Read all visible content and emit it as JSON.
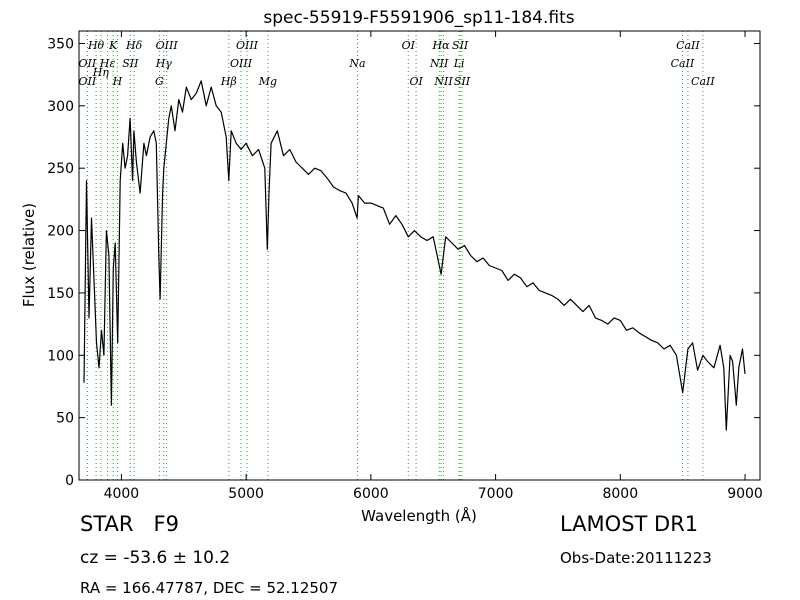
{
  "chart_data": {
    "type": "line",
    "title": "spec-55919-F5591906_sp11-184.fits",
    "xlabel": "Wavelength (Å)",
    "ylabel": "Flux (relative)",
    "xlim": [
      3660,
      9120
    ],
    "ylim": [
      0,
      360
    ],
    "xticks": [
      4000,
      5000,
      6000,
      7000,
      8000,
      9000
    ],
    "yticks": [
      0,
      50,
      100,
      150,
      200,
      250,
      300,
      350
    ],
    "grid": false,
    "line_color": "#000000",
    "marker_color": "#3a9e3a",
    "series": [
      {
        "x": [
          3700,
          3720,
          3740,
          3760,
          3780,
          3800,
          3820,
          3840,
          3860,
          3880,
          3900,
          3920,
          3935,
          3950,
          3970,
          3990,
          4010,
          4030,
          4050,
          4070,
          4090,
          4100,
          4120,
          4150,
          4180,
          4200,
          4230,
          4260,
          4280,
          4300,
          4310,
          4330,
          4340,
          4360,
          4380,
          4400,
          4430,
          4460,
          4490,
          4520,
          4560,
          4600,
          4640,
          4680,
          4720,
          4760,
          4800,
          4840,
          4861,
          4880,
          4920,
          4960,
          5000,
          5050,
          5100,
          5150,
          5170,
          5183,
          5200,
          5250,
          5300,
          5350,
          5400,
          5450,
          5500,
          5550,
          5600,
          5650,
          5700,
          5750,
          5800,
          5850,
          5890,
          5900,
          5950,
          6000,
          6050,
          6100,
          6150,
          6200,
          6250,
          6300,
          6350,
          6400,
          6450,
          6500,
          6563,
          6600,
          6650,
          6700,
          6750,
          6800,
          6850,
          6900,
          6950,
          7000,
          7050,
          7100,
          7150,
          7200,
          7250,
          7300,
          7350,
          7400,
          7450,
          7500,
          7550,
          7600,
          7650,
          7700,
          7750,
          7800,
          7850,
          7900,
          7950,
          8000,
          8050,
          8100,
          8150,
          8200,
          8250,
          8300,
          8350,
          8400,
          8450,
          8500,
          8542,
          8580,
          8620,
          8662,
          8700,
          8750,
          8800,
          8830,
          8850,
          8880,
          8900,
          8930,
          8950,
          8980,
          9000
        ],
        "y": [
          78,
          240,
          130,
          210,
          160,
          110,
          90,
          120,
          100,
          200,
          180,
          60,
          170,
          190,
          110,
          240,
          270,
          250,
          260,
          290,
          240,
          280,
          255,
          230,
          270,
          260,
          275,
          280,
          270,
          180,
          145,
          230,
          250,
          270,
          290,
          300,
          280,
          305,
          295,
          315,
          305,
          310,
          320,
          300,
          315,
          300,
          295,
          275,
          240,
          280,
          270,
          265,
          270,
          260,
          265,
          250,
          185,
          230,
          270,
          280,
          260,
          265,
          255,
          250,
          245,
          250,
          248,
          242,
          235,
          232,
          230,
          222,
          210,
          228,
          222,
          222,
          220,
          218,
          205,
          212,
          205,
          195,
          200,
          195,
          192,
          195,
          165,
          195,
          190,
          185,
          188,
          180,
          175,
          178,
          172,
          170,
          168,
          160,
          165,
          162,
          155,
          158,
          152,
          150,
          148,
          145,
          140,
          145,
          140,
          135,
          140,
          130,
          128,
          125,
          130,
          128,
          120,
          122,
          118,
          115,
          112,
          110,
          105,
          108,
          100,
          70,
          105,
          110,
          88,
          100,
          95,
          90,
          108,
          90,
          40,
          100,
          95,
          60,
          90,
          105,
          85
        ]
      }
    ],
    "line_markers": [
      {
        "label": "Hθ",
        "wave": 3797,
        "row": 0
      },
      {
        "label": "K",
        "wave": 3934,
        "row": 0
      },
      {
        "label": "Hδ",
        "wave": 4102,
        "row": 0
      },
      {
        "label": "OIII",
        "wave": 4363,
        "row": 0
      },
      {
        "label": "OIII",
        "wave": 5007,
        "row": 0
      },
      {
        "label": "OI",
        "wave": 6300,
        "row": 0
      },
      {
        "label": "Hα",
        "wave": 6563,
        "row": 0
      },
      {
        "label": "SII",
        "wave": 6716,
        "row": 0
      },
      {
        "label": "CaII",
        "wave": 8542,
        "row": 0
      },
      {
        "label": "OII",
        "wave": 3727,
        "row": 1
      },
      {
        "label": "Hε",
        "wave": 3889,
        "row": 1
      },
      {
        "label": "SII",
        "wave": 4072,
        "row": 1
      },
      {
        "label": "Hγ",
        "wave": 4340,
        "row": 1
      },
      {
        "label": "OIII",
        "wave": 4959,
        "row": 1
      },
      {
        "label": "Na",
        "wave": 5893,
        "row": 1
      },
      {
        "label": "NII",
        "wave": 6548,
        "row": 1
      },
      {
        "label": "Li",
        "wave": 6708,
        "row": 1
      },
      {
        "label": "CaII",
        "wave": 8498,
        "row": 1
      },
      {
        "label": "Hη",
        "wave": 3835,
        "row": 1.5
      },
      {
        "label": "OII",
        "wave": 3727,
        "row": 2
      },
      {
        "label": "H",
        "wave": 3968,
        "row": 2
      },
      {
        "label": "G",
        "wave": 4305,
        "row": 2
      },
      {
        "label": "Hβ",
        "wave": 4861,
        "row": 2
      },
      {
        "label": "Mg",
        "wave": 5175,
        "row": 2
      },
      {
        "label": "OI",
        "wave": 6363,
        "row": 2
      },
      {
        "label": "NII",
        "wave": 6583,
        "row": 2
      },
      {
        "label": "SII",
        "wave": 6731,
        "row": 2
      },
      {
        "label": "CaII",
        "wave": 8662,
        "row": 2
      }
    ]
  },
  "info": {
    "object_class": "STAR   F9",
    "survey": "LAMOST DR1",
    "cz": "cz = -53.6 ± 10.2",
    "obs_date": "Obs-Date:20111223",
    "radec": "RA = 166.47787, DEC = 52.12507"
  }
}
